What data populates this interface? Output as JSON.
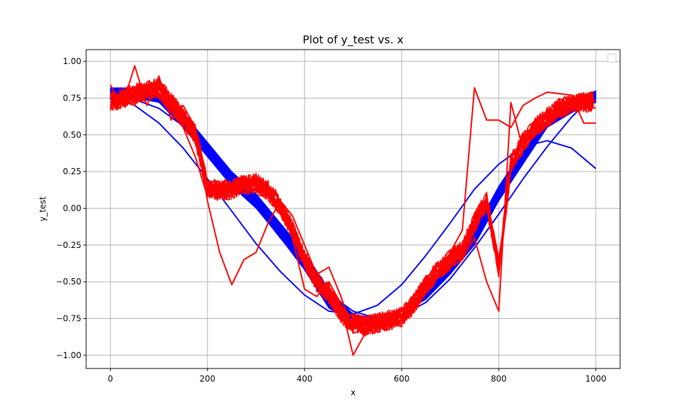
{
  "chart_data": {
    "type": "line",
    "title": "Plot of y_test vs. x",
    "xlabel": "x",
    "ylabel": "y_test",
    "xlim": [
      -50,
      1050
    ],
    "ylim": [
      -1.09,
      1.08
    ],
    "xticks": [
      0,
      200,
      400,
      600,
      800,
      1000
    ],
    "yticks": [
      -1.0,
      -0.75,
      -0.5,
      -0.25,
      0.0,
      0.25,
      0.5,
      0.75,
      1.0
    ],
    "xtick_labels": [
      "0",
      "200",
      "400",
      "600",
      "800",
      "1000"
    ],
    "ytick_labels": [
      "−1.00",
      "−0.75",
      "−0.50",
      "−0.25",
      "0.00",
      "0.25",
      "0.50",
      "0.75",
      "1.00"
    ],
    "grid": true,
    "legend": "top-right (empty)",
    "colors": {
      "blue": "#0000ff",
      "red": "#ff0000",
      "grid": "#b0b0b0",
      "axes": "#000000"
    },
    "blue_band": {
      "x": [
        0,
        50,
        100,
        150,
        200,
        250,
        300,
        350,
        400,
        450,
        500,
        550,
        600,
        650,
        700,
        750,
        800,
        850,
        900,
        950,
        1000
      ],
      "upper": [
        0.82,
        0.82,
        0.78,
        0.65,
        0.45,
        0.25,
        0.1,
        -0.1,
        -0.3,
        -0.55,
        -0.72,
        -0.75,
        -0.72,
        -0.58,
        -0.38,
        -0.15,
        0.15,
        0.4,
        0.6,
        0.72,
        0.8
      ],
      "lower": [
        0.74,
        0.75,
        0.72,
        0.55,
        0.35,
        0.15,
        0.0,
        -0.2,
        -0.42,
        -0.68,
        -0.78,
        -0.78,
        -0.72,
        -0.62,
        -0.45,
        -0.25,
        0.05,
        0.3,
        0.55,
        0.65,
        0.72
      ]
    },
    "series": [
      {
        "color": "blue",
        "x": [
          0,
          50,
          100,
          150,
          200,
          250,
          300,
          350,
          400,
          450,
          500,
          550,
          600,
          650,
          700,
          750,
          800,
          850,
          900,
          950,
          1000
        ],
        "values": [
          0.75,
          0.74,
          0.68,
          0.56,
          0.4,
          0.21,
          0.01,
          -0.2,
          -0.4,
          -0.58,
          -0.7,
          -0.75,
          -0.73,
          -0.64,
          -0.48,
          -0.27,
          -0.04,
          0.2,
          0.42,
          0.62,
          0.78
        ]
      },
      {
        "color": "blue",
        "x": [
          0,
          50,
          100,
          150,
          200,
          250,
          300,
          350,
          400,
          450,
          500,
          550,
          600,
          650,
          700,
          750,
          800,
          850,
          900,
          950,
          1000
        ],
        "values": [
          0.75,
          0.7,
          0.58,
          0.41,
          0.2,
          -0.02,
          -0.24,
          -0.43,
          -0.59,
          -0.7,
          -0.72,
          -0.66,
          -0.52,
          -0.32,
          -0.1,
          0.13,
          0.3,
          0.42,
          0.46,
          0.41,
          0.27
        ]
      },
      {
        "color": "red",
        "x": [
          0,
          25,
          50,
          75,
          100,
          125,
          150,
          175,
          200,
          225,
          250,
          275,
          300,
          325,
          350,
          375,
          400,
          425,
          450,
          475,
          500,
          525,
          550,
          575,
          600,
          625,
          650,
          675,
          700,
          725,
          750,
          775,
          800,
          825,
          850,
          875,
          900,
          925,
          950,
          975,
          1000
        ],
        "values": [
          0.72,
          0.75,
          0.78,
          0.8,
          0.82,
          0.72,
          0.62,
          0.5,
          0.14,
          0.12,
          0.13,
          0.16,
          0.17,
          0.12,
          0.02,
          -0.15,
          -0.35,
          -0.5,
          -0.58,
          -0.72,
          -0.78,
          -0.8,
          -0.78,
          -0.76,
          -0.74,
          -0.65,
          -0.52,
          -0.42,
          -0.35,
          -0.28,
          -0.1,
          0.05,
          -0.4,
          0.3,
          0.45,
          0.55,
          0.62,
          0.68,
          0.71,
          0.72,
          0.73
        ]
      },
      {
        "color": "red",
        "x": [
          0,
          25,
          50,
          75,
          100,
          125,
          150,
          175,
          200,
          225,
          250,
          275,
          300,
          325,
          350,
          375,
          400,
          425,
          450,
          475,
          500,
          525,
          550,
          575,
          600,
          625,
          650,
          675,
          700,
          725,
          750,
          775,
          800,
          825,
          850,
          875,
          900,
          925,
          950,
          975,
          1000
        ],
        "values": [
          0.84,
          0.7,
          0.97,
          0.7,
          0.9,
          0.6,
          0.7,
          0.55,
          0.05,
          -0.3,
          -0.52,
          -0.35,
          -0.3,
          -0.1,
          0.05,
          -0.2,
          -0.55,
          -0.6,
          -0.5,
          -0.65,
          -1.0,
          -0.85,
          -0.8,
          -0.78,
          -0.72,
          -0.6,
          -0.55,
          -0.45,
          -0.3,
          -0.15,
          0.82,
          0.6,
          0.6,
          0.55,
          0.7,
          0.75,
          0.79,
          0.78,
          0.77,
          0.58,
          0.58
        ]
      },
      {
        "color": "red",
        "x": [
          0,
          25,
          50,
          75,
          100,
          125,
          150,
          175,
          200,
          225,
          250,
          275,
          300,
          325,
          350,
          375,
          400,
          425,
          450,
          475,
          500,
          525,
          550,
          575,
          600,
          625,
          650,
          675,
          700,
          725,
          750,
          775,
          800,
          825,
          850,
          875,
          900,
          925,
          950,
          975,
          1000
        ],
        "values": [
          0.68,
          0.73,
          0.7,
          0.85,
          0.75,
          0.65,
          0.55,
          0.35,
          0.08,
          0.1,
          0.15,
          0.18,
          0.19,
          0.15,
          0.05,
          -0.05,
          -0.25,
          -0.45,
          -0.4,
          -0.6,
          -0.85,
          -0.82,
          -0.75,
          -0.72,
          -0.7,
          -0.6,
          -0.5,
          -0.45,
          -0.4,
          -0.35,
          -0.2,
          -0.5,
          -0.7,
          0.72,
          0.4,
          0.5,
          0.6,
          0.62,
          0.66,
          0.7,
          0.68
        ]
      }
    ]
  }
}
